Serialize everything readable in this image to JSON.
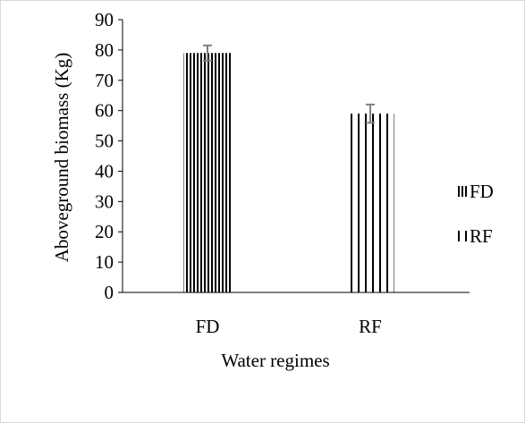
{
  "chart_data": {
    "type": "bar",
    "title": "",
    "xlabel": "Water regimes",
    "ylabel": "Aboveground biomass (Kg)",
    "categories": [
      "FD",
      "RF"
    ],
    "values": [
      79,
      59
    ],
    "error": [
      2.5,
      3
    ],
    "ylim": [
      0,
      90
    ],
    "yticks": [
      "0",
      "10",
      "20",
      "30",
      "40",
      "50",
      "60",
      "70",
      "80",
      "90"
    ],
    "grid": false,
    "legend": {
      "placement": "right",
      "items": [
        "FD",
        "RF"
      ]
    },
    "patterns": [
      "dense-vertical-stripes",
      "sparse-vertical-stripes"
    ],
    "colors": {
      "stroke": "#000000",
      "background": "#ffffff",
      "axis": "#000000",
      "error_bar": "#7f7f7f",
      "frame": "#d9d9d9"
    }
  }
}
